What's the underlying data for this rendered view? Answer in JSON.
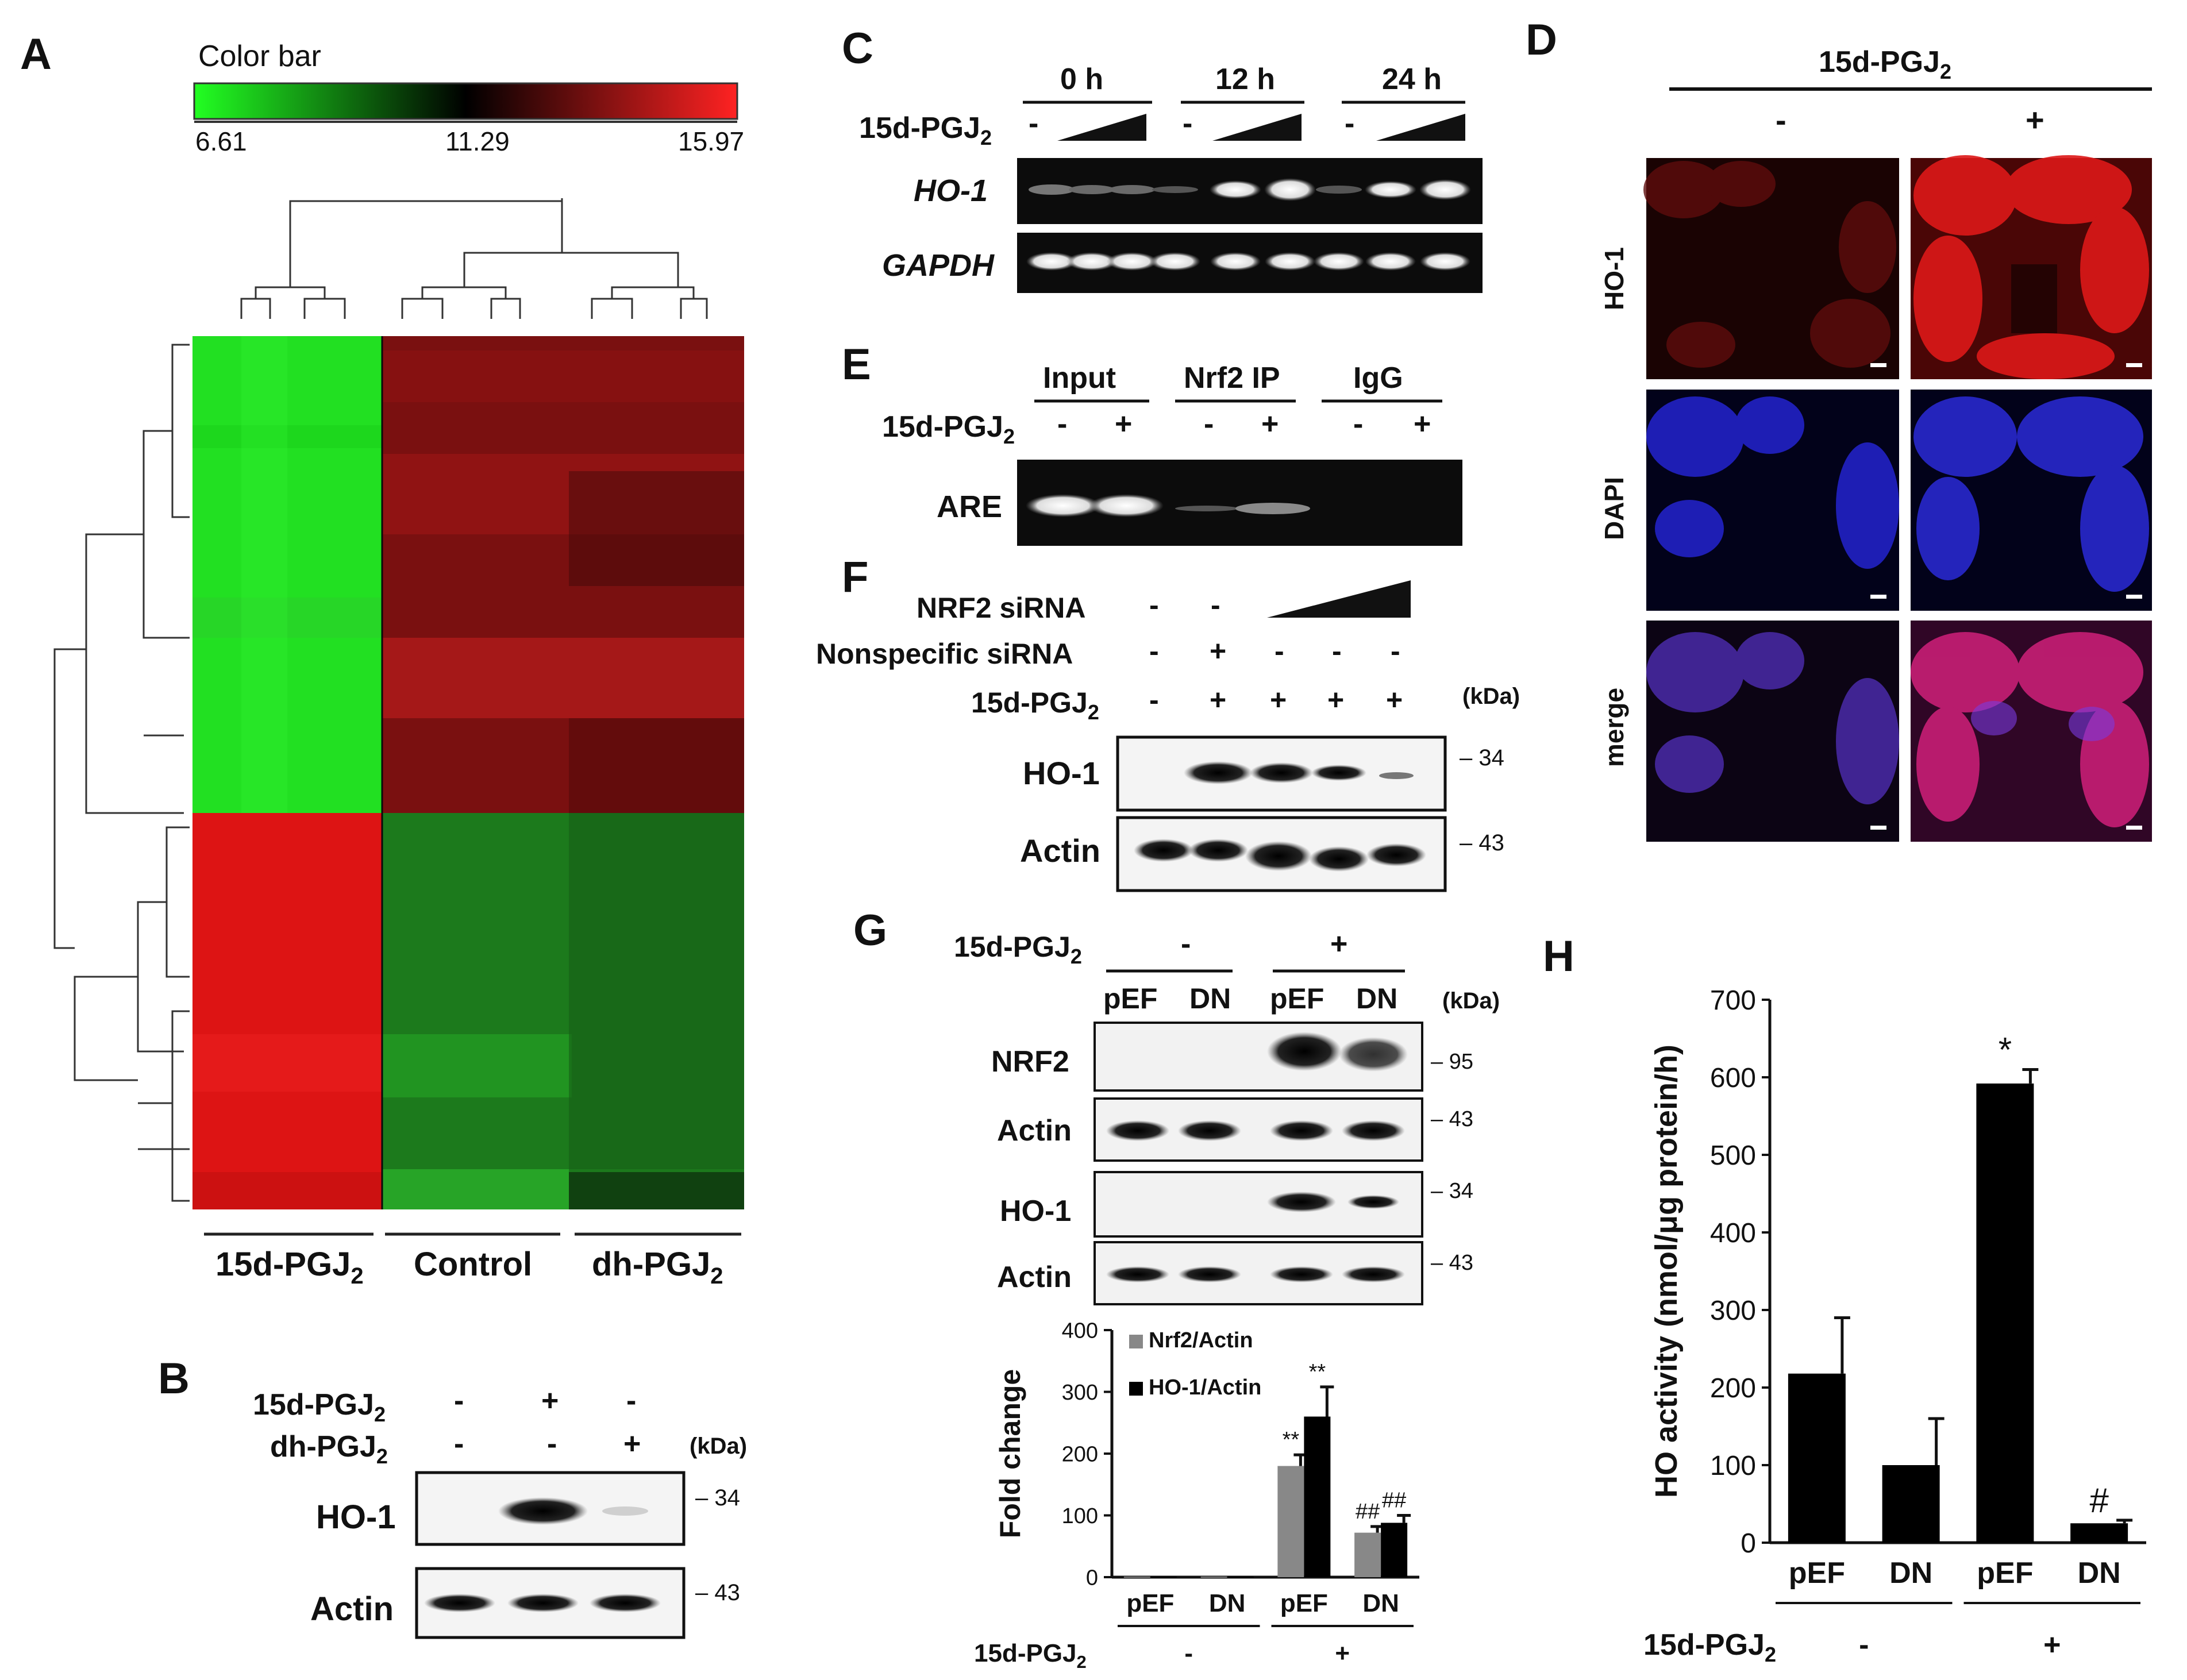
{
  "panels": {
    "A": "A",
    "B": "B",
    "C": "C",
    "D": "D",
    "E": "E",
    "F": "F",
    "G": "G",
    "H": "H"
  },
  "panel_a": {
    "colorbar_title": "Color bar",
    "colorbar_ticks": [
      "6.61",
      "11.29",
      "15.97"
    ],
    "colorbar_colors": [
      "#22ff22",
      "#000000",
      "#ff2222"
    ],
    "groups": [
      "15d-PGJ",
      "Control",
      "dh-PGJ"
    ],
    "group_subs": [
      "2",
      "",
      "2"
    ]
  },
  "panel_b": {
    "rows": [
      {
        "name": "15d-PGJ",
        "sub": "2",
        "signs": [
          "-",
          "+",
          "-"
        ]
      },
      {
        "name": "dh-PGJ",
        "sub": "2",
        "signs": [
          "-",
          "-",
          "+"
        ]
      }
    ],
    "kda_label": "(kDa)",
    "bands": [
      {
        "name": "HO-1",
        "kda": "34"
      },
      {
        "name": "Actin",
        "kda": "43"
      }
    ]
  },
  "panel_c": {
    "timepoints": [
      "0 h",
      "12 h",
      "24 h"
    ],
    "treatment": "15d-PGJ",
    "treatment_sub": "2",
    "signs": [
      "-",
      "-",
      "-"
    ],
    "genes": [
      "HO-1",
      "GAPDH"
    ]
  },
  "panel_d": {
    "treatment": "15d-PGJ",
    "treatment_sub": "2",
    "signs": [
      "-",
      "+"
    ],
    "rows": [
      "HO-1",
      "DAPI",
      "merge"
    ]
  },
  "panel_e": {
    "groups": [
      "Input",
      "Nrf2 IP",
      "IgG"
    ],
    "treatment": "15d-PGJ",
    "treatment_sub": "2",
    "signs": [
      "-",
      "+",
      "-",
      "+",
      "-",
      "+"
    ],
    "band": "ARE"
  },
  "panel_f": {
    "rows": [
      {
        "name": "NRF2 siRNA",
        "sub": "",
        "signs": [
          "-",
          "-"
        ]
      },
      {
        "name": "Nonspecific siRNA",
        "sub": "",
        "signs": [
          "-",
          "+",
          "-",
          "-",
          "-"
        ]
      },
      {
        "name": "15d-PGJ",
        "sub": "2",
        "signs": [
          "-",
          "+",
          "+",
          "+",
          "+"
        ]
      }
    ],
    "kda_label": "(kDa)",
    "bands": [
      {
        "name": "HO-1",
        "kda": "34"
      },
      {
        "name": "Actin",
        "kda": "43"
      }
    ]
  },
  "panel_g": {
    "treatment": "15d-PGJ",
    "treatment_sub": "2",
    "signs": [
      "-",
      "+"
    ],
    "lanes": [
      "pEF",
      "DN",
      "pEF",
      "DN"
    ],
    "kda_label": "(kDa)",
    "bands": [
      {
        "name": "NRF2",
        "kda": "95"
      },
      {
        "name": "Actin",
        "kda": "43"
      },
      {
        "name": "HO-1",
        "kda": "34"
      },
      {
        "name": "Actin",
        "kda": "43"
      }
    ]
  },
  "chart_data": [
    {
      "id": "G-quantification",
      "type": "bar",
      "title": "",
      "xlabel": "",
      "ylabel": "Fold change",
      "ylim": [
        0,
        400
      ],
      "yticks": [
        0,
        100,
        200,
        300,
        400
      ],
      "categories": [
        "pEF",
        "DN",
        "pEF",
        "DN"
      ],
      "group_labels": [
        "-",
        "+"
      ],
      "treatment_label": "15d-PGJ",
      "treatment_sub": "2",
      "series": [
        {
          "name": "Nrf2/Actin",
          "color": "#888888",
          "values": [
            1,
            1,
            180,
            72
          ],
          "errors": [
            0,
            0,
            18,
            10
          ],
          "annotations": [
            "",
            "",
            "**",
            "##"
          ]
        },
        {
          "name": "HO-1/Actin",
          "color": "#000000",
          "values": [
            1,
            1,
            260,
            88
          ],
          "errors": [
            0,
            0,
            48,
            12
          ],
          "annotations": [
            "",
            "",
            "**",
            "##"
          ]
        }
      ],
      "legend": "top-left"
    },
    {
      "id": "H-HO-activity",
      "type": "bar",
      "title": "",
      "xlabel": "",
      "ylabel": "HO activity (nmol/μg  protein/h)",
      "ylim": [
        0,
        700
      ],
      "yticks": [
        0,
        100,
        200,
        300,
        400,
        500,
        600,
        700
      ],
      "categories": [
        "pEF",
        "DN",
        "pEF",
        "DN"
      ],
      "group_labels": [
        "-",
        "+"
      ],
      "treatment_label": "15d-PGJ",
      "treatment_sub": "2",
      "series": [
        {
          "name": "HO activity",
          "color": "#000000",
          "values": [
            218,
            100,
            592,
            25
          ],
          "errors": [
            72,
            60,
            18,
            4
          ],
          "annotations": [
            "",
            "",
            "*",
            "#"
          ]
        }
      ]
    }
  ]
}
